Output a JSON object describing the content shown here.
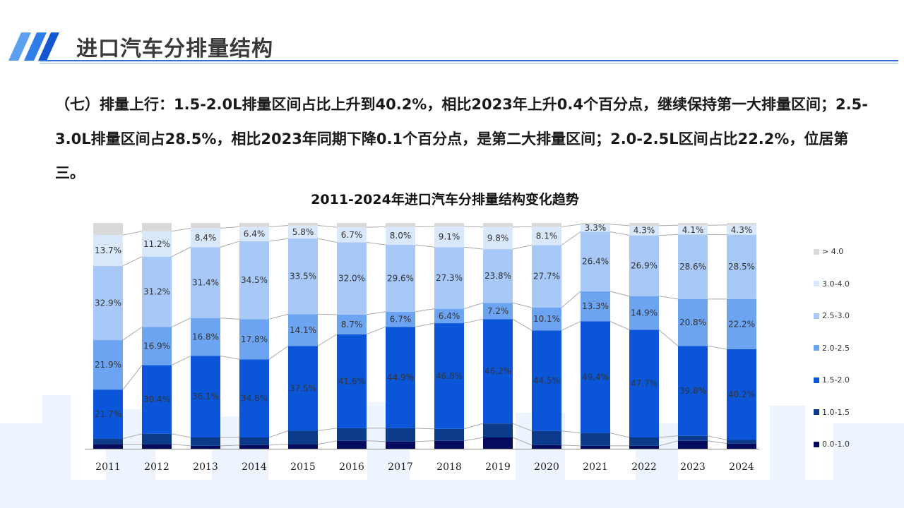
{
  "header": {
    "title": "进口汽车分排量结构"
  },
  "body_text": {
    "paragraph": "（七）排量上行：1.5-2.0L排量区间占比上升到40.2%，相比2023年上升0.4个百分点，继续保持第一大排量区间；2.5-3.0L排量区间占28.5%，相比2023年同期下降0.1个百分点，是第二大排量区间；2.0-2.5L区间占比22.2%，位居第三。"
  },
  "chart_data": {
    "type": "bar",
    "stacked": true,
    "normalized_percent": true,
    "title": "2011-2024年进口汽车分排量结构变化趋势",
    "categories": [
      "2011",
      "2012",
      "2013",
      "2014",
      "2015",
      "2016",
      "2017",
      "2018",
      "2019",
      "2020",
      "2021",
      "2022",
      "2023",
      "2024"
    ],
    "ylim": [
      0,
      100
    ],
    "legend_position": "right",
    "grid": false,
    "series": [
      {
        "name": "0.0-1.0",
        "color": "#070b5e",
        "labeled": false,
        "values": [
          2.0,
          2.0,
          1.3,
          1.6,
          2.0,
          3.5,
          3.2,
          3.5,
          5.0,
          1.6,
          1.3,
          1.3,
          3.5,
          2.3
        ]
      },
      {
        "name": "1.0-1.5",
        "color": "#0c3b8c",
        "labeled": false,
        "values": [
          2.5,
          4.6,
          3.7,
          3.4,
          6.0,
          5.6,
          5.9,
          5.3,
          6.2,
          6.3,
          5.7,
          3.7,
          2.2,
          1.6
        ]
      },
      {
        "name": "1.5-2.0",
        "color": "#0b56d8",
        "labeled": true,
        "values": [
          21.7,
          30.4,
          36.1,
          34.6,
          37.5,
          41.6,
          44.9,
          46.8,
          46.2,
          44.5,
          49.4,
          47.7,
          39.8,
          40.2
        ]
      },
      {
        "name": "2.0-2.5",
        "color": "#6da4f1",
        "labeled": true,
        "values": [
          21.9,
          16.9,
          16.8,
          17.8,
          14.1,
          8.7,
          6.7,
          6.4,
          7.2,
          10.1,
          13.3,
          14.9,
          20.8,
          22.2
        ]
      },
      {
        "name": "2.5-3.0",
        "color": "#a8c8f7",
        "labeled": true,
        "values": [
          32.9,
          31.2,
          31.4,
          34.5,
          33.5,
          32.0,
          29.6,
          27.3,
          23.8,
          27.7,
          26.4,
          26.9,
          28.6,
          28.5
        ]
      },
      {
        "name": "3.0-4.0",
        "color": "#d9e7fb",
        "labeled": true,
        "values": [
          13.7,
          11.2,
          8.4,
          6.4,
          5.8,
          6.7,
          8.0,
          9.1,
          9.8,
          8.1,
          3.3,
          4.3,
          4.1,
          4.3
        ]
      },
      {
        "name": "> 4.0",
        "color": "#d9d9d9",
        "labeled": false,
        "values": [
          5.3,
          3.7,
          2.3,
          1.7,
          1.1,
          1.9,
          1.7,
          1.6,
          1.8,
          1.7,
          0.6,
          1.2,
          1.0,
          0.9
        ]
      }
    ]
  }
}
